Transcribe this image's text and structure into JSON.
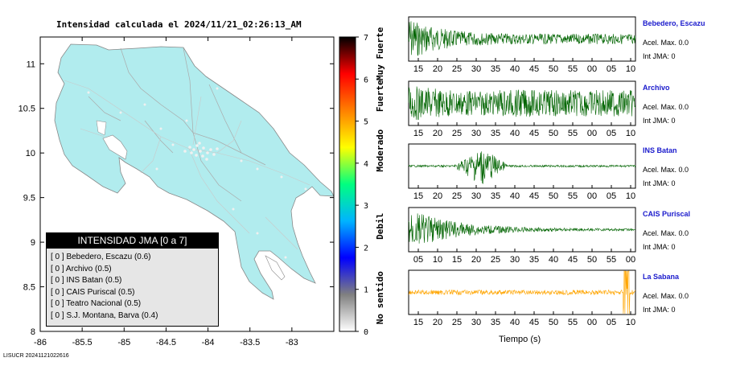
{
  "map": {
    "title": "Intensidad calculada el 2024/11/21_02:26:13_AM",
    "x_ticks": [
      "-86",
      "-85.5",
      "-85",
      "-84.5",
      "-84",
      "-83.5",
      "-83"
    ],
    "y_ticks": [
      "11",
      "10.5",
      "10",
      "9.5",
      "9",
      "8.5",
      "8"
    ],
    "land_color": "#b1ecee",
    "sea_color": "#ffffff"
  },
  "legend": {
    "title": "INTENSIDAD JMA [0 a 7]",
    "items": [
      "[ 0 ]  Bebedero, Escazu (0.6)",
      "[ 0 ]  Archivo (0.5)",
      "[ 0 ]  INS Batan (0.5)",
      "[ 0 ]  CAIS Puriscal (0.5)",
      "[ 0 ]  Teatro Nacional (0.5)",
      "[ 0 ]  S.J. Montana, Barva (0.4)"
    ]
  },
  "scale": {
    "ticks": [
      "0",
      "1",
      "2",
      "3",
      "4",
      "5",
      "6",
      "7"
    ],
    "categories": [
      "No sentido",
      "Debil",
      "Moderado",
      "Fuerte",
      "Muy Fuerte"
    ],
    "colors": [
      "#ffffff",
      "#808080",
      "#0000ff",
      "#00b4ff",
      "#00ff80",
      "#ffff00",
      "#ff8000",
      "#ff0000",
      "#000000"
    ]
  },
  "footer": "LISUCR 20241121022616",
  "traces": [
    {
      "name": "Bebedero, Escazu",
      "acc": "Acel. Max. 0.0",
      "int": "Int JMA: 0",
      "color": "#006400",
      "ticks": [
        "15",
        "20",
        "25",
        "30",
        "35",
        "40",
        "45",
        "50",
        "55",
        "00",
        "05",
        "10"
      ]
    },
    {
      "name": "Archivo",
      "acc": "Acel. Max. 0.0",
      "int": "Int JMA: 0",
      "color": "#006400",
      "ticks": [
        "15",
        "20",
        "25",
        "30",
        "35",
        "40",
        "45",
        "50",
        "55",
        "00",
        "05",
        "10"
      ]
    },
    {
      "name": "INS Batan",
      "acc": "Acel. Max. 0.0",
      "int": "Int JMA: 0",
      "color": "#006400",
      "ticks": [
        "15",
        "20",
        "25",
        "30",
        "35",
        "40",
        "45",
        "50",
        "55",
        "00",
        "05",
        "10"
      ]
    },
    {
      "name": "CAIS Puriscal",
      "acc": "Acel. Max. 0.0",
      "int": "Int JMA: 0",
      "color": "#006400",
      "ticks": [
        "05",
        "10",
        "15",
        "20",
        "25",
        "30",
        "35",
        "40",
        "45",
        "50",
        "55",
        "00"
      ]
    },
    {
      "name": "La Sabana",
      "acc": "Acel. Max. 0.0",
      "int": "Int JMA: 0",
      "color": "#ffa500",
      "ticks": [
        "15",
        "20",
        "25",
        "30",
        "35",
        "40",
        "45",
        "50",
        "55",
        "00",
        "05",
        "10"
      ]
    }
  ],
  "chart_data": [
    {
      "type": "map",
      "title": "Intensidad calculada el 2024/11/21_02:26:13_AM",
      "xlim": [
        -86,
        -82.5
      ],
      "ylim": [
        8,
        11.3
      ],
      "x_ticks": [
        -86,
        -85.5,
        -85,
        -84.5,
        -84,
        -83.5,
        -83
      ],
      "y_ticks": [
        8,
        8.5,
        9,
        9.5,
        10,
        10.5,
        11
      ],
      "colorbar": {
        "range": [
          0,
          7
        ],
        "labels": [
          "No sentido",
          "Debil",
          "Moderado",
          "Fuerte",
          "Muy Fuerte"
        ]
      }
    },
    {
      "type": "line",
      "xlabel": "Tiempo (s)",
      "series": [
        {
          "name": "Bebedero, Escazu",
          "peak_acceleration": 0.0,
          "intensity": 0
        },
        {
          "name": "Archivo",
          "peak_acceleration": 0.0,
          "intensity": 0
        },
        {
          "name": "INS Batan",
          "peak_acceleration": 0.0,
          "intensity": 0
        },
        {
          "name": "CAIS Puriscal",
          "peak_acceleration": 0.0,
          "intensity": 0
        },
        {
          "name": "La Sabana",
          "peak_acceleration": 0.0,
          "intensity": 0
        }
      ]
    }
  ],
  "traces_xlabel": "Tiempo (s)"
}
